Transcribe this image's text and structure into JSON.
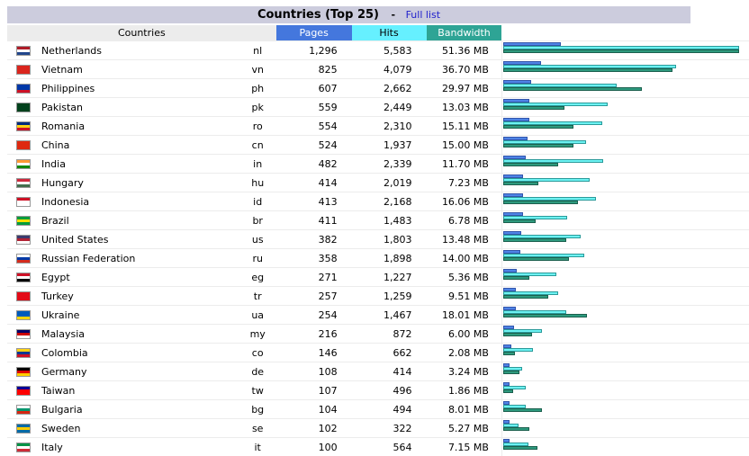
{
  "header": {
    "title": "Countries (Top 25)",
    "separator": "-",
    "full_list_link": "Full list"
  },
  "columns": {
    "countries": "Countries",
    "pages": "Pages",
    "hits": "Hits",
    "bandwidth": "Bandwidth"
  },
  "colors": {
    "pages": "#4477dd",
    "hits": "#66f0ff",
    "bandwidth": "#2ea495",
    "title_bg": "#ccccdd"
  },
  "rows": [
    {
      "country": "Netherlands",
      "code": "nl",
      "pages": "1,296",
      "hits": "5,583",
      "bandwidth": "51.36 MB",
      "flag": [
        "#ae1c28",
        "#ffffff",
        "#21468b"
      ]
    },
    {
      "country": "Vietnam",
      "code": "vn",
      "pages": "825",
      "hits": "4,079",
      "bandwidth": "36.70 MB",
      "flag": [
        "#da251d",
        "#da251d",
        "#da251d"
      ]
    },
    {
      "country": "Philippines",
      "code": "ph",
      "pages": "607",
      "hits": "2,662",
      "bandwidth": "29.97 MB",
      "flag": [
        "#0038a8",
        "#0038a8",
        "#ce1126"
      ]
    },
    {
      "country": "Pakistan",
      "code": "pk",
      "pages": "559",
      "hits": "2,449",
      "bandwidth": "13.03 MB",
      "flag": [
        "#01411c",
        "#01411c",
        "#01411c"
      ]
    },
    {
      "country": "Romania",
      "code": "ro",
      "pages": "554",
      "hits": "2,310",
      "bandwidth": "15.11 MB",
      "flag": [
        "#002b7f",
        "#fcd116",
        "#ce1126"
      ]
    },
    {
      "country": "China",
      "code": "cn",
      "pages": "524",
      "hits": "1,937",
      "bandwidth": "15.00 MB",
      "flag": [
        "#de2910",
        "#de2910",
        "#de2910"
      ]
    },
    {
      "country": "India",
      "code": "in",
      "pages": "482",
      "hits": "2,339",
      "bandwidth": "11.70 MB",
      "flag": [
        "#ff9933",
        "#ffffff",
        "#138808"
      ]
    },
    {
      "country": "Hungary",
      "code": "hu",
      "pages": "414",
      "hits": "2,019",
      "bandwidth": "7.23 MB",
      "flag": [
        "#cd2a3e",
        "#ffffff",
        "#436f4d"
      ]
    },
    {
      "country": "Indonesia",
      "code": "id",
      "pages": "413",
      "hits": "2,168",
      "bandwidth": "16.06 MB",
      "flag": [
        "#ce1126",
        "#ffffff",
        "#ffffff"
      ]
    },
    {
      "country": "Brazil",
      "code": "br",
      "pages": "411",
      "hits": "1,483",
      "bandwidth": "6.78 MB",
      "flag": [
        "#009c3b",
        "#ffdf00",
        "#009c3b"
      ]
    },
    {
      "country": "United States",
      "code": "us",
      "pages": "382",
      "hits": "1,803",
      "bandwidth": "13.48 MB",
      "flag": [
        "#3c3b6e",
        "#b22234",
        "#ffffff"
      ]
    },
    {
      "country": "Russian Federation",
      "code": "ru",
      "pages": "358",
      "hits": "1,898",
      "bandwidth": "14.00 MB",
      "flag": [
        "#ffffff",
        "#0039a6",
        "#d52b1e"
      ]
    },
    {
      "country": "Egypt",
      "code": "eg",
      "pages": "271",
      "hits": "1,227",
      "bandwidth": "5.36 MB",
      "flag": [
        "#ce1126",
        "#ffffff",
        "#000000"
      ]
    },
    {
      "country": "Turkey",
      "code": "tr",
      "pages": "257",
      "hits": "1,259",
      "bandwidth": "9.51 MB",
      "flag": [
        "#e30a17",
        "#e30a17",
        "#e30a17"
      ]
    },
    {
      "country": "Ukraine",
      "code": "ua",
      "pages": "254",
      "hits": "1,467",
      "bandwidth": "18.01 MB",
      "flag": [
        "#005bbb",
        "#005bbb",
        "#ffd500"
      ]
    },
    {
      "country": "Malaysia",
      "code": "my",
      "pages": "216",
      "hits": "872",
      "bandwidth": "6.00 MB",
      "flag": [
        "#010066",
        "#cc0001",
        "#ffffff"
      ]
    },
    {
      "country": "Colombia",
      "code": "co",
      "pages": "146",
      "hits": "662",
      "bandwidth": "2.08 MB",
      "flag": [
        "#fcd116",
        "#003893",
        "#ce1126"
      ]
    },
    {
      "country": "Germany",
      "code": "de",
      "pages": "108",
      "hits": "414",
      "bandwidth": "3.24 MB",
      "flag": [
        "#000000",
        "#dd0000",
        "#ffce00"
      ]
    },
    {
      "country": "Taiwan",
      "code": "tw",
      "pages": "107",
      "hits": "496",
      "bandwidth": "1.86 MB",
      "flag": [
        "#000095",
        "#fe0000",
        "#fe0000"
      ]
    },
    {
      "country": "Bulgaria",
      "code": "bg",
      "pages": "104",
      "hits": "494",
      "bandwidth": "8.01 MB",
      "flag": [
        "#ffffff",
        "#00966e",
        "#d62612"
      ]
    },
    {
      "country": "Sweden",
      "code": "se",
      "pages": "102",
      "hits": "322",
      "bandwidth": "5.27 MB",
      "flag": [
        "#006aa7",
        "#fecc00",
        "#006aa7"
      ]
    },
    {
      "country": "Italy",
      "code": "it",
      "pages": "100",
      "hits": "564",
      "bandwidth": "7.15 MB",
      "flag": [
        "#009246",
        "#ffffff",
        "#ce2b37"
      ]
    }
  ]
}
